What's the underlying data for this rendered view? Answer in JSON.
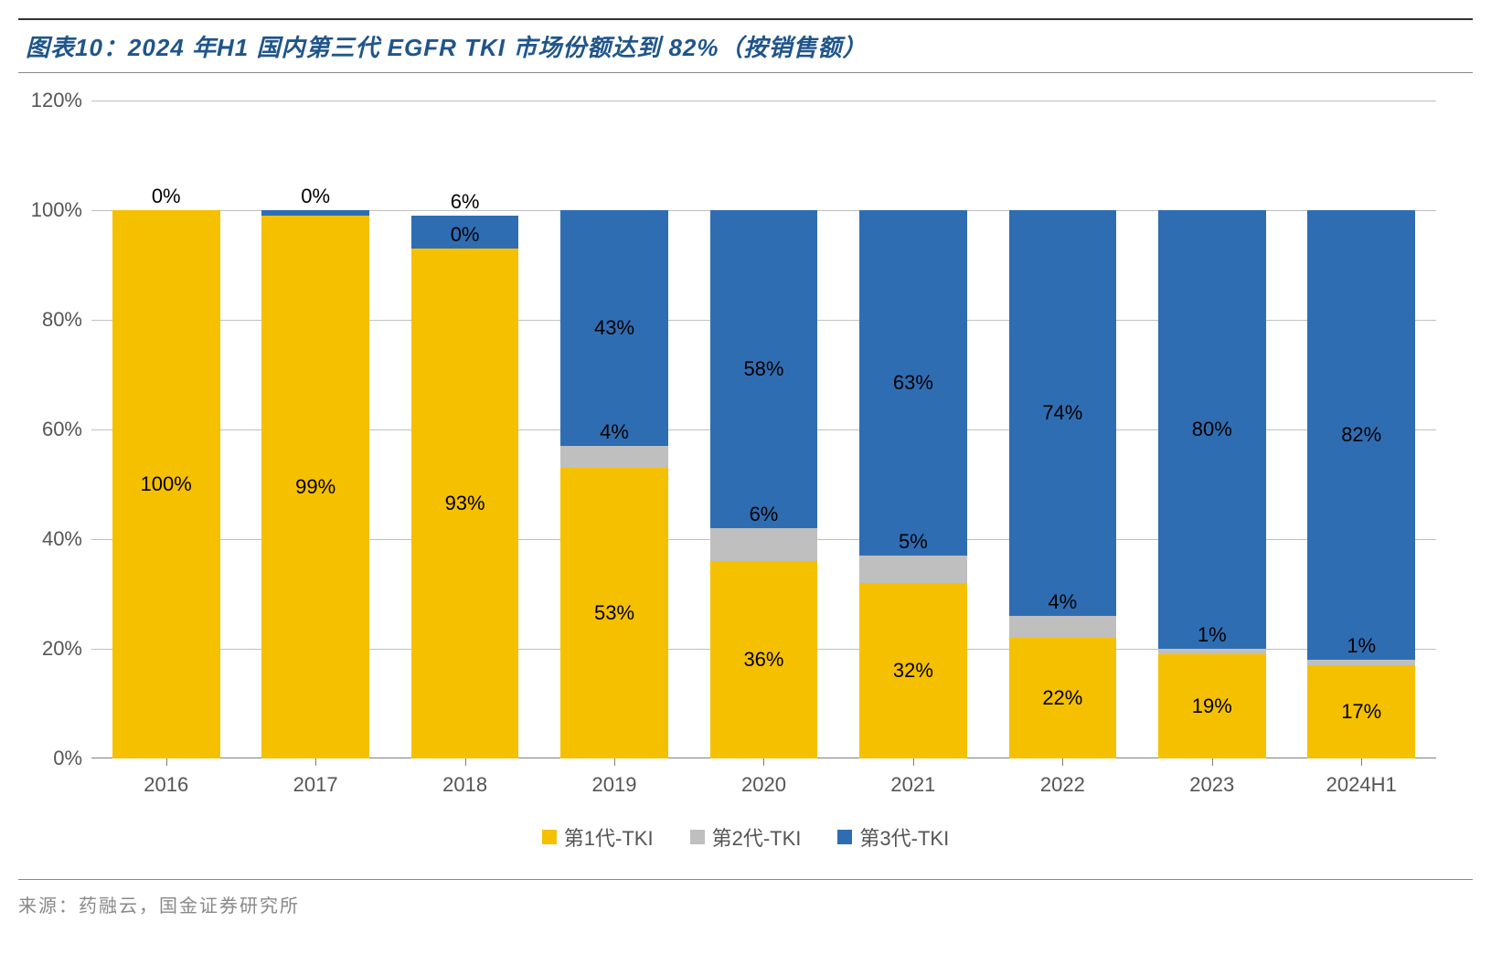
{
  "title": "图表10：2024 年H1 国内第三代 EGFR TKI 市场份额达到 82%（按销售额）",
  "source": "来源：药融云，国金证券研究所",
  "chart": {
    "type": "stacked-bar",
    "ylim": [
      0,
      120
    ],
    "ytick_step": 20,
    "y_suffix": "%",
    "grid_color": "#bfbfbf",
    "axis_color": "#808080",
    "background_color": "#ffffff",
    "bar_width_pct": 8,
    "label_fontsize": 22,
    "title_fontsize": 26,
    "title_color": "#20558a",
    "categories": [
      "2016",
      "2017",
      "2018",
      "2019",
      "2020",
      "2021",
      "2022",
      "2023",
      "2024H1"
    ],
    "series": [
      {
        "name": "第1代-TKI",
        "color": "#f5c000",
        "values": [
          100,
          99,
          93,
          53,
          36,
          32,
          22,
          19,
          17
        ]
      },
      {
        "name": "第2代-TKI",
        "color": "#bfbfbf",
        "values": [
          0,
          0,
          0,
          4,
          6,
          5,
          4,
          1,
          1
        ]
      },
      {
        "name": "第3代-TKI",
        "color": "#2f6db3",
        "values": [
          0,
          1,
          6,
          43,
          58,
          63,
          74,
          80,
          82
        ]
      }
    ],
    "value_labels": [
      [
        {
          "text": "100%",
          "series": 0,
          "pos": "mid"
        },
        {
          "text": "0%",
          "series": 1,
          "pos": "top-outside"
        }
      ],
      [
        {
          "text": "99%",
          "series": 0,
          "pos": "mid"
        },
        {
          "text": "0%",
          "series": 1,
          "pos": "top-outside"
        }
      ],
      [
        {
          "text": "93%",
          "series": 0,
          "pos": "mid"
        },
        {
          "text": "0%",
          "series": 1,
          "pos": "above-seg"
        },
        {
          "text": "6%",
          "series": 2,
          "pos": "top-outside"
        }
      ],
      [
        {
          "text": "53%",
          "series": 0,
          "pos": "mid"
        },
        {
          "text": "4%",
          "series": 1,
          "pos": "above-seg"
        },
        {
          "text": "43%",
          "series": 2,
          "pos": "mid"
        }
      ],
      [
        {
          "text": "36%",
          "series": 0,
          "pos": "mid"
        },
        {
          "text": "6%",
          "series": 1,
          "pos": "above-seg"
        },
        {
          "text": "58%",
          "series": 2,
          "pos": "mid"
        }
      ],
      [
        {
          "text": "32%",
          "series": 0,
          "pos": "mid"
        },
        {
          "text": "5%",
          "series": 1,
          "pos": "above-seg"
        },
        {
          "text": "63%",
          "series": 2,
          "pos": "mid"
        }
      ],
      [
        {
          "text": "22%",
          "series": 0,
          "pos": "mid"
        },
        {
          "text": "4%",
          "series": 1,
          "pos": "above-seg"
        },
        {
          "text": "74%",
          "series": 2,
          "pos": "mid"
        }
      ],
      [
        {
          "text": "19%",
          "series": 0,
          "pos": "mid"
        },
        {
          "text": "1%",
          "series": 1,
          "pos": "above-seg"
        },
        {
          "text": "80%",
          "series": 2,
          "pos": "mid"
        }
      ],
      [
        {
          "text": "17%",
          "series": 0,
          "pos": "mid"
        },
        {
          "text": "1%",
          "series": 1,
          "pos": "above-seg"
        },
        {
          "text": "82%",
          "series": 2,
          "pos": "mid"
        }
      ]
    ]
  },
  "legend": {
    "items": [
      "第1代-TKI",
      "第2代-TKI",
      "第3代-TKI"
    ]
  }
}
